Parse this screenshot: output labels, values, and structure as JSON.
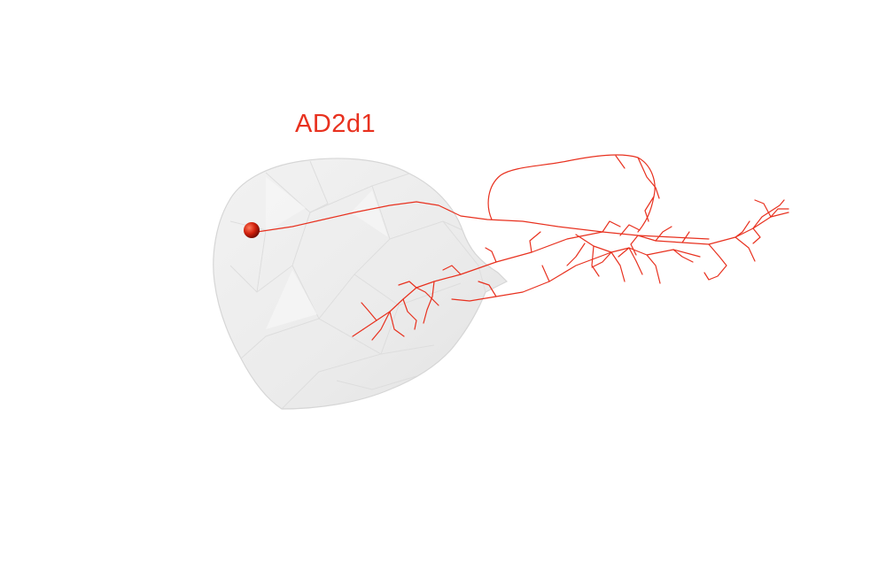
{
  "neuron": {
    "name": "AD2d1",
    "color": "#e8311f",
    "soma_color": "#c91a0a"
  },
  "mesh": {
    "fill": "#ececec",
    "edge": "#d9d9d9"
  }
}
